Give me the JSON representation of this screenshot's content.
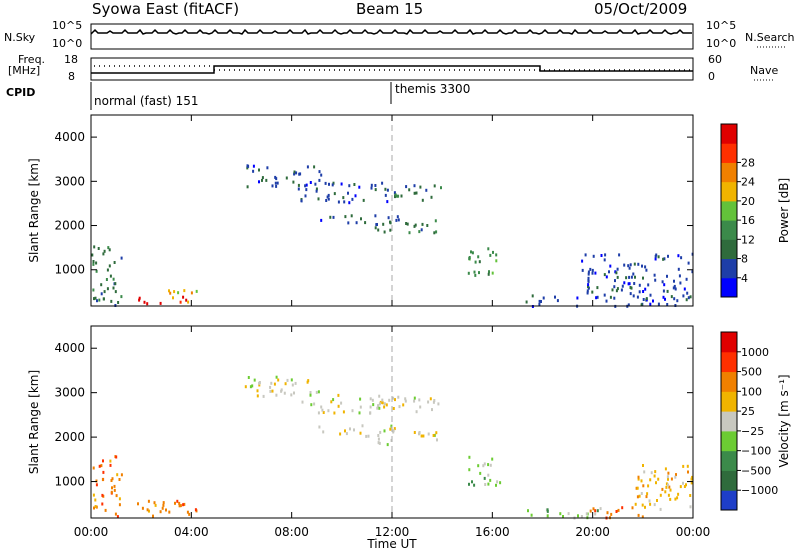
{
  "header": {
    "station": "Syowa East (fitACF)",
    "beam": "Beam 15",
    "date": "05/Oct/2009"
  },
  "panels": {
    "nsky_label": "N.Sky",
    "nsky_ticks": [
      "10^5",
      "10^0"
    ],
    "nsearch_label": "N.Search",
    "nsearch_ticks": [
      "10^5",
      "10^0"
    ],
    "freq_label_line1": "Freq.",
    "freq_label_line2": "[MHz]",
    "freq_ticks": [
      "18",
      "8"
    ],
    "nave_label": "Nave",
    "nave_ticks": [
      "60",
      "0"
    ],
    "cpid_label": "CPID",
    "cpid_modes": [
      "normal (fast) 151",
      "themis 3300"
    ]
  },
  "chart_data": [
    {
      "type": "heatmap",
      "name": "power-panel",
      "ylabel": "Slant Range [km]",
      "xlabel": "Time UT",
      "x_ticks": [
        "00:00",
        "04:00",
        "08:00",
        "12:00",
        "16:00",
        "20:00",
        "00:00"
      ],
      "xlim": [
        0,
        24
      ],
      "y_ticks": [
        "1000",
        "2000",
        "3000",
        "4000"
      ],
      "ylim": [
        180,
        4500
      ],
      "colorbar": {
        "label": "Power [dB]",
        "ticks": [
          "4",
          "8",
          "12",
          "16",
          "20",
          "24",
          "28"
        ],
        "colors": [
          "#0000ff",
          "#1e3ea8",
          "#2f6b3c",
          "#3b8a4a",
          "#63c23a",
          "#f0b400",
          "#f08000",
          "#ff3000",
          "#e00000"
        ]
      },
      "regions": [
        {
          "t0": 6.1,
          "t1": 9.2,
          "r0": 2900,
          "r1": 3400,
          "level": 1
        },
        {
          "t0": 8.2,
          "t1": 12.4,
          "r0": 2550,
          "r1": 3000,
          "level": 1
        },
        {
          "t0": 12.0,
          "t1": 14.1,
          "r0": 2600,
          "r1": 2950,
          "level": 2
        },
        {
          "t0": 9.0,
          "t1": 12.3,
          "r0": 2050,
          "r1": 2300,
          "level": 1
        },
        {
          "t0": 11.2,
          "t1": 13.8,
          "r0": 1850,
          "r1": 2150,
          "level": 2
        },
        {
          "t0": 15.0,
          "t1": 16.3,
          "r0": 900,
          "r1": 1600,
          "level": 3
        },
        {
          "t0": 0.0,
          "t1": 1.2,
          "r0": 200,
          "r1": 1600,
          "level": 2
        },
        {
          "t0": 1.8,
          "t1": 3.8,
          "r0": 250,
          "r1": 420,
          "level": 8
        },
        {
          "t0": 3.0,
          "t1": 4.3,
          "r0": 280,
          "r1": 600,
          "level": 5
        },
        {
          "t0": 17.2,
          "t1": 24.0,
          "r0": 200,
          "r1": 450,
          "level": 1
        },
        {
          "t0": 19.5,
          "t1": 24.0,
          "r0": 400,
          "r1": 1400,
          "level": 1
        }
      ]
    },
    {
      "type": "heatmap",
      "name": "velocity-panel",
      "ylabel": "Slant Range [km]",
      "xlabel": "Time UT",
      "x_ticks": [
        "00:00",
        "04:00",
        "08:00",
        "12:00",
        "16:00",
        "20:00",
        "00:00"
      ],
      "xlim": [
        0,
        24
      ],
      "y_ticks": [
        "1000",
        "2000",
        "3000",
        "4000"
      ],
      "ylim": [
        180,
        4500
      ],
      "colorbar": {
        "label": "Velocity [m s⁻¹]",
        "ticks": [
          "1000",
          "500",
          "100",
          "25",
          "−25",
          "−100",
          "−500",
          "−1000"
        ],
        "colors": [
          "#1e3ec8",
          "#2f6b3c",
          "#3b8a4a",
          "#6ccc33",
          "#c8c8c0",
          "#f0b400",
          "#f08000",
          "#ff3000",
          "#e00000"
        ]
      },
      "regions": [
        {
          "t0": 6.1,
          "t1": 9.2,
          "r0": 2900,
          "r1": 3400,
          "level": 4
        },
        {
          "t0": 8.2,
          "t1": 12.4,
          "r0": 2550,
          "r1": 3000,
          "level": 4
        },
        {
          "t0": 12.0,
          "t1": 14.1,
          "r0": 2600,
          "r1": 2950,
          "level": 4
        },
        {
          "t0": 9.0,
          "t1": 12.3,
          "r0": 2050,
          "r1": 2300,
          "level": 4
        },
        {
          "t0": 11.2,
          "t1": 13.8,
          "r0": 1850,
          "r1": 2150,
          "level": 4
        },
        {
          "t0": 15.0,
          "t1": 16.3,
          "r0": 900,
          "r1": 1600,
          "level": 3
        },
        {
          "t0": 0.0,
          "t1": 1.2,
          "r0": 200,
          "r1": 1600,
          "level": 6
        },
        {
          "t0": 1.8,
          "t1": 3.8,
          "r0": 250,
          "r1": 600,
          "level": 6
        },
        {
          "t0": 3.0,
          "t1": 4.3,
          "r0": 280,
          "r1": 600,
          "level": 6
        },
        {
          "t0": 17.2,
          "t1": 20.5,
          "r0": 200,
          "r1": 450,
          "level": 3
        },
        {
          "t0": 19.8,
          "t1": 22.0,
          "r0": 200,
          "r1": 450,
          "level": 6
        },
        {
          "t0": 21.5,
          "t1": 24.0,
          "r0": 300,
          "r1": 1400,
          "level": 5
        }
      ]
    }
  ]
}
